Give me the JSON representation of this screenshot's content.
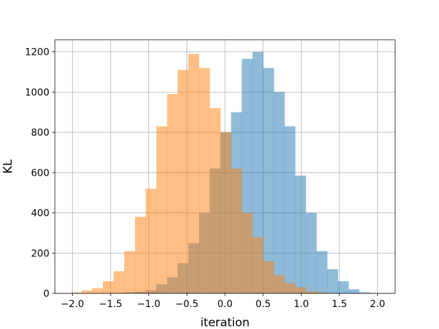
{
  "chart_data": {
    "type": "bar",
    "title": "",
    "xlabel": "iteration",
    "ylabel": "KL",
    "xlim": [
      -2.23,
      2.23
    ],
    "ylim": [
      0,
      1260
    ],
    "grid": true,
    "xticks": [
      -2.0,
      -1.5,
      -1.0,
      -0.5,
      0.0,
      0.5,
      1.0,
      1.5,
      2.0
    ],
    "xtick_labels": [
      "−2.0",
      "−1.5",
      "−1.0",
      "−0.5",
      "0.0",
      "0.5",
      "1.0",
      "1.5",
      "2.0"
    ],
    "yticks": [
      0,
      200,
      400,
      600,
      800,
      1000,
      1200
    ],
    "ytick_labels": [
      "0",
      "200",
      "400",
      "600",
      "800",
      "1000",
      "1200"
    ],
    "series": [
      {
        "color": "#1f77b4",
        "opacity": 0.5,
        "bin_edges": [
          -1.6,
          -1.46,
          -1.32,
          -1.18,
          -1.04,
          -0.9,
          -0.76,
          -0.62,
          -0.48,
          -0.34,
          -0.2,
          -0.06,
          0.08,
          0.22,
          0.36,
          0.5,
          0.64,
          0.78,
          0.92,
          1.06,
          1.2,
          1.34,
          1.48,
          1.62,
          1.76,
          1.9,
          2.04
        ],
        "counts": [
          1,
          2,
          5,
          8,
          15,
          45,
          80,
          150,
          250,
          400,
          620,
          800,
          900,
          1165,
          1200,
          1120,
          1000,
          830,
          585,
          400,
          210,
          120,
          60,
          20,
          5,
          1
        ]
      },
      {
        "color": "#ff7f0e",
        "opacity": 0.5,
        "bin_edges": [
          -2.02,
          -1.88,
          -1.74,
          -1.6,
          -1.46,
          -1.32,
          -1.18,
          -1.04,
          -0.9,
          -0.76,
          -0.62,
          -0.48,
          -0.34,
          -0.2,
          -0.06,
          0.08,
          0.22,
          0.36,
          0.5,
          0.64,
          0.78,
          0.92,
          1.06,
          1.2,
          1.34,
          1.48
        ],
        "counts": [
          5,
          15,
          25,
          60,
          110,
          210,
          380,
          520,
          830,
          990,
          1110,
          1190,
          1120,
          920,
          800,
          620,
          400,
          280,
          160,
          90,
          50,
          30,
          10,
          5,
          1
        ]
      }
    ]
  }
}
